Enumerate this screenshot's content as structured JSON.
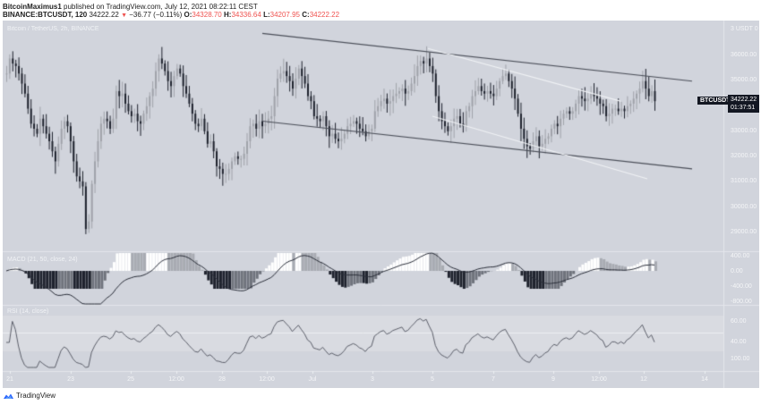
{
  "header": {
    "line1_user": "BitcoinMaximus1",
    "line1_rest": " published on TradingView.com, July 12, 2021 08:22:11 CEST",
    "symbol": "BINANCE:BTCUSDT, 120",
    "last": "34222.22",
    "change_icon": "triangle-down-icon",
    "change": "−36.77 (−0.11%)",
    "o_label": "O:",
    "o": "34328.70",
    "h_label": "H:",
    "h": "34336.64",
    "l_label": "L:",
    "l": "34207.95",
    "c_label": "C:",
    "c": "34222.22"
  },
  "panes": {
    "main_title": "Bitcoin / TetherUS, 2h, BINANCE",
    "macd_title": "MACD (21, 50, close, 24)",
    "rsi_title": "RSI (14, close)"
  },
  "price_badge": {
    "symbol": "BTCUSDT",
    "price": "34222.22",
    "countdown": "01:37:51"
  },
  "axis": {
    "price_ticks": [
      "3 USDT 0",
      "36000.00",
      "35000.00",
      "33000.00",
      "32000.00",
      "31000.00",
      "30000.00",
      "29000.00"
    ],
    "macd_ticks": [
      "400.00",
      "0.00",
      "-400.00",
      "-800.00"
    ],
    "rsi_ticks": [
      "60.00",
      "40.00",
      "100.00"
    ],
    "time_ticks": [
      "21",
      "23",
      "25",
      "12:00",
      "28",
      "12:00",
      "Jul",
      "3",
      "5",
      "7",
      "9",
      "12:00",
      "12",
      "14"
    ]
  },
  "footer": {
    "brand": "TradingView",
    "logo_icon": "tradingview-cloud-icon"
  },
  "colors": {
    "bg": "#d1d4dc",
    "candle_up": "#a0a3aa",
    "candle_down": "#1e222d",
    "trendline": "#4a4e58",
    "trendline_light": "#f0f2f5",
    "hist_pos": "#ffffff",
    "hist_pos_weak": "#a8abb2",
    "hist_neg": "#1e222d",
    "hist_neg_weak": "#6f737c"
  },
  "chart_data": [
    {
      "type": "candlestick",
      "title": "Bitcoin / TetherUS, 2h, BINANCE",
      "xlabel": "",
      "ylabel": "USDT",
      "ylim": [
        28500,
        37200
      ],
      "x_ticks": [
        "21",
        "23",
        "25",
        "12:00",
        "28",
        "12:00",
        "Jul",
        "3",
        "5",
        "7",
        "9",
        "12:00",
        "12",
        "14"
      ],
      "close_path": [
        35300,
        35900,
        35700,
        35600,
        35300,
        34900,
        34500,
        33900,
        33300,
        33100,
        32900,
        33500,
        33200,
        32900,
        32600,
        32200,
        31800,
        32500,
        33100,
        33400,
        33200,
        32600,
        31800,
        31200,
        31000,
        30800,
        29100,
        29400,
        30900,
        31800,
        32600,
        33300,
        33500,
        33400,
        33100,
        33500,
        34600,
        34400,
        34500,
        34100,
        33800,
        33600,
        33700,
        33400,
        33300,
        33700,
        34000,
        34400,
        34700,
        35400,
        35900,
        35700,
        35400,
        35000,
        34800,
        35200,
        35500,
        35300,
        34800,
        34500,
        34100,
        33700,
        33300,
        33200,
        33500,
        33000,
        32500,
        32600,
        32200,
        31600,
        31500,
        31300,
        31300,
        31500,
        31800,
        32000,
        31900,
        31900,
        32100,
        32600,
        33200,
        33300,
        33100,
        33400,
        33200,
        33300,
        33500,
        33600,
        34400,
        35100,
        35300,
        35400,
        35200,
        35000,
        34700,
        35100,
        35500,
        35200,
        34900,
        34400,
        34200,
        33600,
        33500,
        33400,
        33600,
        33200,
        32800,
        32900,
        32700,
        32600,
        32700,
        32900,
        33200,
        33300,
        33400,
        33300,
        33100,
        33000,
        32800,
        33000,
        33100,
        33800,
        34000,
        34200,
        34300,
        34100,
        34200,
        34400,
        34500,
        34600,
        34700,
        34500,
        34600,
        34900,
        35200,
        35600,
        35800,
        35700,
        35900,
        35600,
        35300,
        34400,
        33800,
        33400,
        33200,
        33000,
        33200,
        33500,
        33600,
        33300,
        33200,
        33800,
        34000,
        34400,
        34600,
        34800,
        34600,
        34500,
        34600,
        34500,
        34400,
        34700,
        35000,
        35200,
        35300,
        35000,
        34700,
        34300,
        33700,
        33100,
        32700,
        32400,
        32300,
        32600,
        32800,
        32400,
        32500,
        32700,
        32800,
        33100,
        33300,
        33200,
        33500,
        33700,
        33800,
        33700,
        33800,
        34100,
        34400,
        34300,
        34200,
        34300,
        34500,
        34400,
        34300,
        34100,
        34000,
        33600,
        33700,
        33900,
        33900,
        33800,
        33900,
        33800,
        34000,
        34100,
        34300,
        34500,
        34700,
        35000,
        34700,
        34400,
        34600,
        34200
      ],
      "trendlines": [
        {
          "name": "channel-top",
          "from": [
            290,
            36900
          ],
          "to": [
            770,
            35000
          ]
        },
        {
          "name": "channel-bottom",
          "from": [
            290,
            33400
          ],
          "to": [
            770,
            31500
          ]
        },
        {
          "name": "wedge-top",
          "from": [
            475,
            36300
          ],
          "to": [
            690,
            34200
          ]
        },
        {
          "name": "wedge-bottom",
          "from": [
            480,
            33600
          ],
          "to": [
            720,
            31100
          ]
        }
      ]
    },
    {
      "type": "bar+line",
      "title": "MACD (21, 50, close, 24)",
      "ylim": [
        -800,
        400
      ],
      "series": [
        {
          "name": "histogram"
        },
        {
          "name": "macd"
        }
      ]
    },
    {
      "type": "line",
      "title": "RSI (14, close)",
      "ylim": [
        20,
        80
      ],
      "bands": [
        30,
        70
      ],
      "midline": 50
    }
  ]
}
